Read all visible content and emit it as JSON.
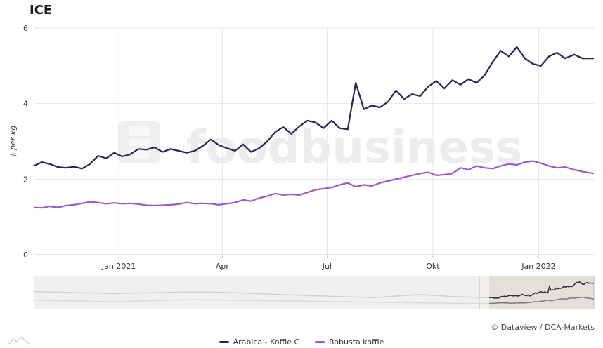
{
  "page": {
    "title": "ICE",
    "credits": "© Dataview / DCA-Markets",
    "watermark": "foodbusiness"
  },
  "colors": {
    "arabica": "#2e2157",
    "robusta": "#9b59c9",
    "grid": "#e6e6e6",
    "navigator_bg": "#f2f0ee",
    "navigator_selected": "#e3dfd9"
  },
  "chart_data": {
    "type": "line",
    "title": "ICE",
    "ylabel": "$ per kg",
    "ylim": [
      0,
      6
    ],
    "yticks": [
      0,
      2,
      4,
      6
    ],
    "xticks": [
      "Jan 2021",
      "Apr",
      "Jul",
      "Okt",
      "Jan 2022"
    ],
    "x_start": "2020-10-19",
    "x_end": "2022-02-18",
    "grid": true,
    "legend_position": "bottom-center",
    "series": [
      {
        "name": "Arabica - Koffie C",
        "points": [
          [
            "2020-10-19",
            2.35
          ],
          [
            "2020-10-26",
            2.45
          ],
          [
            "2020-11-02",
            2.4
          ],
          [
            "2020-11-09",
            2.32
          ],
          [
            "2020-11-16",
            2.3
          ],
          [
            "2020-11-23",
            2.33
          ],
          [
            "2020-11-30",
            2.28
          ],
          [
            "2020-12-07",
            2.4
          ],
          [
            "2020-12-14",
            2.62
          ],
          [
            "2020-12-21",
            2.55
          ],
          [
            "2020-12-28",
            2.7
          ],
          [
            "2021-01-04",
            2.6
          ],
          [
            "2021-01-11",
            2.66
          ],
          [
            "2021-01-18",
            2.8
          ],
          [
            "2021-01-25",
            2.78
          ],
          [
            "2021-02-01",
            2.84
          ],
          [
            "2021-02-08",
            2.72
          ],
          [
            "2021-02-15",
            2.8
          ],
          [
            "2021-02-22",
            2.75
          ],
          [
            "2021-03-01",
            2.7
          ],
          [
            "2021-03-08",
            2.75
          ],
          [
            "2021-03-15",
            2.88
          ],
          [
            "2021-03-22",
            3.05
          ],
          [
            "2021-03-29",
            2.9
          ],
          [
            "2021-04-05",
            2.82
          ],
          [
            "2021-04-12",
            2.75
          ],
          [
            "2021-04-19",
            2.92
          ],
          [
            "2021-04-26",
            2.72
          ],
          [
            "2021-05-03",
            2.82
          ],
          [
            "2021-05-10",
            3.0
          ],
          [
            "2021-05-17",
            3.25
          ],
          [
            "2021-05-24",
            3.38
          ],
          [
            "2021-05-31",
            3.2
          ],
          [
            "2021-06-07",
            3.4
          ],
          [
            "2021-06-14",
            3.55
          ],
          [
            "2021-06-21",
            3.5
          ],
          [
            "2021-06-28",
            3.35
          ],
          [
            "2021-07-05",
            3.55
          ],
          [
            "2021-07-12",
            3.35
          ],
          [
            "2021-07-19",
            3.32
          ],
          [
            "2021-07-26",
            4.55
          ],
          [
            "2021-08-02",
            3.85
          ],
          [
            "2021-08-09",
            3.95
          ],
          [
            "2021-08-16",
            3.9
          ],
          [
            "2021-08-23",
            4.05
          ],
          [
            "2021-08-30",
            4.35
          ],
          [
            "2021-09-06",
            4.12
          ],
          [
            "2021-09-13",
            4.25
          ],
          [
            "2021-09-20",
            4.2
          ],
          [
            "2021-09-27",
            4.45
          ],
          [
            "2021-10-04",
            4.6
          ],
          [
            "2021-10-11",
            4.4
          ],
          [
            "2021-10-18",
            4.62
          ],
          [
            "2021-10-25",
            4.5
          ],
          [
            "2021-11-01",
            4.65
          ],
          [
            "2021-11-08",
            4.55
          ],
          [
            "2021-11-15",
            4.75
          ],
          [
            "2021-11-22",
            5.1
          ],
          [
            "2021-11-29",
            5.4
          ],
          [
            "2021-12-06",
            5.25
          ],
          [
            "2021-12-13",
            5.5
          ],
          [
            "2021-12-20",
            5.2
          ],
          [
            "2021-12-27",
            5.05
          ],
          [
            "2022-01-03",
            5.0
          ],
          [
            "2022-01-10",
            5.25
          ],
          [
            "2022-01-17",
            5.35
          ],
          [
            "2022-01-24",
            5.2
          ],
          [
            "2022-02-01",
            5.3
          ],
          [
            "2022-02-08",
            5.2
          ],
          [
            "2022-02-18",
            5.2
          ]
        ]
      },
      {
        "name": "Robusta koffie",
        "points": [
          [
            "2020-10-19",
            1.25
          ],
          [
            "2020-10-26",
            1.24
          ],
          [
            "2020-11-02",
            1.28
          ],
          [
            "2020-11-09",
            1.25
          ],
          [
            "2020-11-16",
            1.3
          ],
          [
            "2020-11-23",
            1.32
          ],
          [
            "2020-11-30",
            1.36
          ],
          [
            "2020-12-07",
            1.4
          ],
          [
            "2020-12-14",
            1.38
          ],
          [
            "2020-12-21",
            1.35
          ],
          [
            "2020-12-28",
            1.37
          ],
          [
            "2021-01-04",
            1.35
          ],
          [
            "2021-01-11",
            1.36
          ],
          [
            "2021-01-18",
            1.34
          ],
          [
            "2021-01-25",
            1.31
          ],
          [
            "2021-02-01",
            1.3
          ],
          [
            "2021-02-08",
            1.31
          ],
          [
            "2021-02-15",
            1.32
          ],
          [
            "2021-02-22",
            1.34
          ],
          [
            "2021-03-01",
            1.38
          ],
          [
            "2021-03-08",
            1.35
          ],
          [
            "2021-03-15",
            1.36
          ],
          [
            "2021-03-22",
            1.35
          ],
          [
            "2021-03-29",
            1.32
          ],
          [
            "2021-04-05",
            1.35
          ],
          [
            "2021-04-12",
            1.38
          ],
          [
            "2021-04-19",
            1.45
          ],
          [
            "2021-04-26",
            1.42
          ],
          [
            "2021-05-03",
            1.5
          ],
          [
            "2021-05-10",
            1.55
          ],
          [
            "2021-05-17",
            1.62
          ],
          [
            "2021-05-24",
            1.58
          ],
          [
            "2021-05-31",
            1.6
          ],
          [
            "2021-06-07",
            1.58
          ],
          [
            "2021-06-14",
            1.65
          ],
          [
            "2021-06-21",
            1.72
          ],
          [
            "2021-06-28",
            1.75
          ],
          [
            "2021-07-05",
            1.78
          ],
          [
            "2021-07-12",
            1.85
          ],
          [
            "2021-07-19",
            1.9
          ],
          [
            "2021-07-26",
            1.8
          ],
          [
            "2021-08-02",
            1.85
          ],
          [
            "2021-08-09",
            1.82
          ],
          [
            "2021-08-16",
            1.9
          ],
          [
            "2021-08-23",
            1.95
          ],
          [
            "2021-08-30",
            2.0
          ],
          [
            "2021-09-06",
            2.05
          ],
          [
            "2021-09-13",
            2.1
          ],
          [
            "2021-09-20",
            2.15
          ],
          [
            "2021-09-27",
            2.18
          ],
          [
            "2021-10-04",
            2.1
          ],
          [
            "2021-10-11",
            2.12
          ],
          [
            "2021-10-18",
            2.15
          ],
          [
            "2021-10-25",
            2.3
          ],
          [
            "2021-11-01",
            2.25
          ],
          [
            "2021-11-08",
            2.35
          ],
          [
            "2021-11-15",
            2.3
          ],
          [
            "2021-11-22",
            2.28
          ],
          [
            "2021-11-29",
            2.35
          ],
          [
            "2021-12-06",
            2.4
          ],
          [
            "2021-12-13",
            2.38
          ],
          [
            "2021-12-20",
            2.45
          ],
          [
            "2021-12-27",
            2.48
          ],
          [
            "2022-01-03",
            2.42
          ],
          [
            "2022-01-10",
            2.35
          ],
          [
            "2022-01-17",
            2.3
          ],
          [
            "2022-01-24",
            2.32
          ],
          [
            "2022-02-01",
            2.25
          ],
          [
            "2022-02-08",
            2.2
          ],
          [
            "2022-02-18",
            2.15
          ]
        ]
      }
    ]
  }
}
